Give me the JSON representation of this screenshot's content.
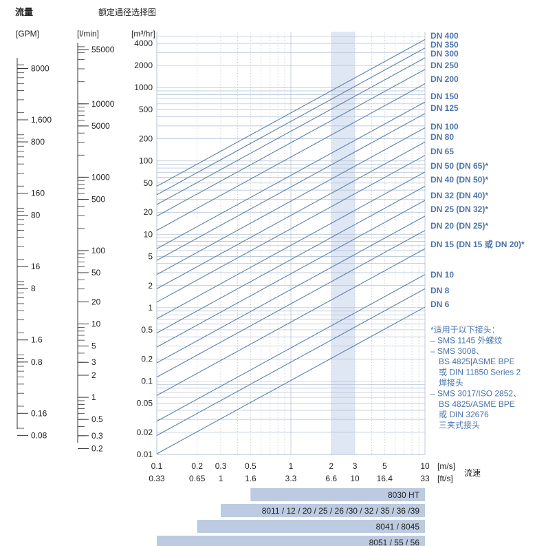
{
  "header": {
    "flow_title": "流量",
    "chart_title": "额定通径选择图"
  },
  "colors": {
    "line": "#5b7fab",
    "grid": "#aebdd0",
    "band": "#dfe6f4",
    "label": "#4a74ad",
    "bar": "#bccbe0",
    "axis_text": "#222222"
  },
  "chart_data": {
    "type": "line",
    "title": "额定通径选择图",
    "x_axis": {
      "label": "流速",
      "scale": "log",
      "range": [
        0.1,
        10
      ],
      "unit_ms": "[m/s]",
      "unit_fts": "[ft/s]",
      "ticks_ms": [
        "0.1",
        "0.2",
        "0.3",
        "0.5",
        "1",
        "2",
        "3",
        "5",
        "10"
      ],
      "tick_values_ms": [
        0.1,
        0.2,
        0.3,
        0.5,
        1,
        2,
        3,
        5,
        10
      ],
      "ticks_fts": [
        "0.33",
        "0.65",
        "1",
        "1.6",
        "3.3",
        "6.6",
        "10",
        "16.4",
        "33"
      ],
      "highlight_band_ms": [
        2,
        3
      ]
    },
    "y_axis": {
      "label": "[m³/hr]",
      "scale": "log",
      "range": [
        0.01,
        5000
      ],
      "ticks": [
        "4000",
        "2000",
        "1000",
        "500",
        "200",
        "100",
        "50",
        "20",
        "10",
        "5",
        "2",
        "1",
        "0.5",
        "0.2",
        "0.1",
        "0.05",
        "0.02",
        "0.01"
      ],
      "tick_values": [
        4000,
        2000,
        1000,
        500,
        200,
        100,
        50,
        20,
        10,
        5,
        2,
        1,
        0.5,
        0.2,
        0.1,
        0.05,
        0.02,
        0.01
      ]
    },
    "series": [
      {
        "name": "DN 400",
        "diameter_mm": 400,
        "flow_at_10ms": 4520
      },
      {
        "name": "DN 350",
        "diameter_mm": 350,
        "flow_at_10ms": 3460
      },
      {
        "name": "DN 300",
        "diameter_mm": 300,
        "flow_at_10ms": 2540
      },
      {
        "name": "DN 250",
        "diameter_mm": 250,
        "flow_at_10ms": 1770
      },
      {
        "name": "DN 200",
        "diameter_mm": 200,
        "flow_at_10ms": 1130
      },
      {
        "name": "DN 150",
        "diameter_mm": 150,
        "flow_at_10ms": 636
      },
      {
        "name": "DN 125",
        "diameter_mm": 125,
        "flow_at_10ms": 442
      },
      {
        "name": "DN 100",
        "diameter_mm": 100,
        "flow_at_10ms": 283
      },
      {
        "name": "DN 80",
        "diameter_mm": 80,
        "flow_at_10ms": 181
      },
      {
        "name": "DN 65",
        "diameter_mm": 65,
        "flow_at_10ms": 119
      },
      {
        "name": "DN 50 (DN 65)*",
        "diameter_mm": 50,
        "flow_at_10ms": 70.7
      },
      {
        "name": "DN 40 (DN 50)*",
        "diameter_mm": 40,
        "flow_at_10ms": 45.2
      },
      {
        "name": "DN 32 (DN 40)*",
        "diameter_mm": 32,
        "flow_at_10ms": 29
      },
      {
        "name": "DN 25 (DN 32)*",
        "diameter_mm": 25,
        "flow_at_10ms": 17.7
      },
      {
        "name": "DN 20 (DN 25)*",
        "diameter_mm": 20,
        "flow_at_10ms": 11.3
      },
      {
        "name": "DN 15 (DN 15 或 DN 20)*",
        "diameter_mm": 15,
        "flow_at_10ms": 6.36
      },
      {
        "name": "DN 10",
        "diameter_mm": 10,
        "flow_at_10ms": 2.83
      },
      {
        "name": "DN 8",
        "diameter_mm": 8,
        "flow_at_10ms": 1.81
      },
      {
        "name": "DN 6",
        "diameter_mm": 6,
        "flow_at_10ms": 1.02
      }
    ],
    "gpm_scale": {
      "unit": "[GPM]",
      "labels": [
        "8000",
        "1,600",
        "800",
        "160",
        "80",
        "16",
        "8",
        "1.6",
        "0.8",
        "0.16",
        "0.08"
      ],
      "values": [
        8000,
        1600,
        800,
        160,
        80,
        16,
        8,
        1.6,
        0.8,
        0.16,
        0.08
      ]
    },
    "lmin_scale": {
      "unit": "[l/min]",
      "labels": [
        "55000",
        "10000",
        "5000",
        "1000",
        "500",
        "100",
        "50",
        "20",
        "10",
        "5",
        "3",
        "2",
        "1",
        "0.5",
        "0.3",
        "0.2"
      ],
      "values": [
        55000,
        10000,
        5000,
        1000,
        500,
        100,
        50,
        20,
        10,
        5,
        3,
        2,
        1,
        0.5,
        0.3,
        0.2
      ]
    },
    "model_bars": [
      {
        "label": "8030 HT",
        "v_min_ms": 0.5,
        "v_max_ms": 10
      },
      {
        "label": "8011 / 12 / 20 / 25 / 26 /30 / 32 / 35 / 36 /39",
        "v_min_ms": 0.3,
        "v_max_ms": 10
      },
      {
        "label": "8041 / 8045",
        "v_min_ms": 0.2,
        "v_max_ms": 10
      },
      {
        "label": "8051 / 55 / 56",
        "v_min_ms": 0.1,
        "v_max_ms": 10
      }
    ],
    "footnote": [
      "*适用于以下接头：",
      "– SMS 1145 外螺纹",
      "– SMS 3008、",
      "BS 4825|ASME BPE",
      "或 DIN 11850 Series 2",
      "焊接头",
      "– SMS 3017/ISO 2852、",
      "BS 4825/ASME BPE",
      "或 DIN 32676",
      "三夹式接头"
    ]
  }
}
